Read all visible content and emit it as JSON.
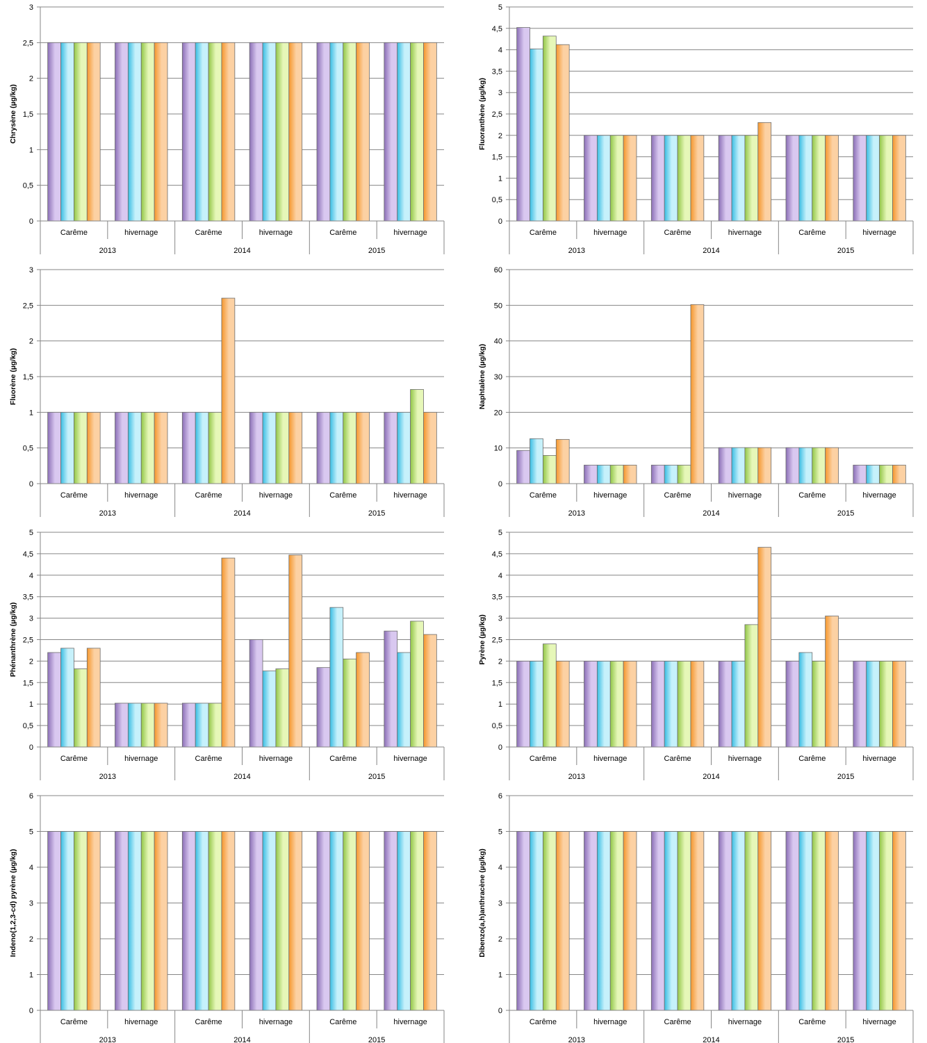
{
  "colors": {
    "s1": [
      "#d9c8f0",
      "#8b6fb6"
    ],
    "s2": [
      "#c6f1fb",
      "#39bde3"
    ],
    "s3": [
      "#e6f7b8",
      "#92c648"
    ],
    "s4": [
      "#fcd1a3",
      "#f5972d"
    ],
    "grid": "#868686"
  },
  "chart_data": [
    {
      "type": "bar",
      "ylabel": "Chrysène (µg/kg)",
      "ylim": [
        0,
        3
      ],
      "ystep": 0.5,
      "categories": [
        "Carême",
        "hivernage",
        "Carême",
        "hivernage",
        "Carême",
        "hivernage"
      ],
      "groups": [
        "2013",
        "2014",
        "2015"
      ],
      "yticks": [
        "0",
        "0,5",
        "1",
        "1,5",
        "2",
        "2,5",
        "3"
      ],
      "series": [
        {
          "values": [
            2.5,
            2.5,
            2.5,
            2.5,
            2.5,
            2.5
          ]
        },
        {
          "values": [
            2.5,
            2.5,
            2.5,
            2.5,
            2.5,
            2.5
          ]
        },
        {
          "values": [
            2.5,
            2.5,
            2.5,
            2.5,
            2.5,
            2.5
          ]
        },
        {
          "values": [
            2.5,
            2.5,
            2.5,
            2.5,
            2.5,
            2.5
          ]
        }
      ],
      "grid": true,
      "legend": "none"
    },
    {
      "type": "bar",
      "ylabel": "Fluoranthène (µg/kg)",
      "ylim": [
        0,
        5
      ],
      "ystep": 0.5,
      "categories": [
        "Carême",
        "hivernage",
        "Carême",
        "hivernage",
        "Carême",
        "hivernage"
      ],
      "groups": [
        "2013",
        "2014",
        "2015"
      ],
      "yticks": [
        "0",
        "0,5",
        "1",
        "1,5",
        "2",
        "2,5",
        "3",
        "3,5",
        "4",
        "4,5",
        "5"
      ],
      "series": [
        {
          "values": [
            4.52,
            2.0,
            2.0,
            2.0,
            2.0,
            2.0
          ]
        },
        {
          "values": [
            4.02,
            2.0,
            2.0,
            2.0,
            2.0,
            2.0
          ]
        },
        {
          "values": [
            4.32,
            2.0,
            2.0,
            2.0,
            2.0,
            2.0
          ]
        },
        {
          "values": [
            4.12,
            2.0,
            2.0,
            2.3,
            2.0,
            2.0
          ]
        }
      ],
      "grid": true,
      "legend": "none"
    },
    {
      "type": "bar",
      "ylabel": "Fluorène (µg/kg)",
      "ylim": [
        0,
        3
      ],
      "ystep": 0.5,
      "categories": [
        "Carême",
        "hivernage",
        "Carême",
        "hivernage",
        "Carême",
        "hivernage"
      ],
      "groups": [
        "2013",
        "2014",
        "2015"
      ],
      "yticks": [
        "0",
        "0,5",
        "1",
        "1,5",
        "2",
        "2,5",
        "3"
      ],
      "series": [
        {
          "values": [
            1.0,
            1.0,
            1.0,
            1.0,
            1.0,
            1.0
          ]
        },
        {
          "values": [
            1.0,
            1.0,
            1.0,
            1.0,
            1.0,
            1.0
          ]
        },
        {
          "values": [
            1.0,
            1.0,
            1.0,
            1.0,
            1.0,
            1.32
          ]
        },
        {
          "values": [
            1.0,
            1.0,
            2.6,
            1.0,
            1.0,
            1.0
          ]
        }
      ],
      "grid": true,
      "legend": "none"
    },
    {
      "type": "bar",
      "ylabel": "Naphtalène (µg/kg)",
      "ylim": [
        0,
        60
      ],
      "ystep": 10,
      "categories": [
        "Carême",
        "hivernage",
        "Carême",
        "hivernage",
        "Carême",
        "hivernage"
      ],
      "groups": [
        "2013",
        "2014",
        "2015"
      ],
      "yticks": [
        "0",
        "10",
        "20",
        "30",
        "40",
        "50",
        "60"
      ],
      "series": [
        {
          "values": [
            9.3,
            5.2,
            5.2,
            10.1,
            10.1,
            5.2
          ]
        },
        {
          "values": [
            12.6,
            5.2,
            5.2,
            10.1,
            10.1,
            5.2
          ]
        },
        {
          "values": [
            7.9,
            5.2,
            5.2,
            10.1,
            10.1,
            5.2
          ]
        },
        {
          "values": [
            12.4,
            5.2,
            50.2,
            10.1,
            10.1,
            5.2
          ]
        }
      ],
      "grid": true,
      "legend": "none"
    },
    {
      "type": "bar",
      "ylabel": "Phénanthrène (µg/kg)",
      "ylim": [
        0,
        5
      ],
      "ystep": 0.5,
      "categories": [
        "Carême",
        "hivernage",
        "Carême",
        "hivernage",
        "Carême",
        "hivernage"
      ],
      "groups": [
        "2013",
        "2014",
        "2015"
      ],
      "yticks": [
        "0",
        "0,5",
        "1",
        "1,5",
        "2",
        "2,5",
        "3",
        "3,5",
        "4",
        "4,5",
        "5"
      ],
      "series": [
        {
          "values": [
            2.2,
            1.02,
            1.02,
            2.5,
            1.85,
            2.7
          ]
        },
        {
          "values": [
            2.3,
            1.02,
            1.02,
            1.77,
            3.25,
            2.2
          ]
        },
        {
          "values": [
            1.82,
            1.02,
            1.02,
            1.82,
            2.05,
            2.93
          ]
        },
        {
          "values": [
            2.3,
            1.02,
            4.4,
            4.47,
            2.2,
            2.62
          ]
        }
      ],
      "grid": true,
      "legend": "none"
    },
    {
      "type": "bar",
      "ylabel": "Pyrène (µg/kg)",
      "ylim": [
        0,
        5
      ],
      "ystep": 0.5,
      "categories": [
        "Carême",
        "hivernage",
        "Carême",
        "hivernage",
        "Carême",
        "hivernage"
      ],
      "groups": [
        "2013",
        "2014",
        "2015"
      ],
      "yticks": [
        "0",
        "0,5",
        "1",
        "1,5",
        "2",
        "2,5",
        "3",
        "3,5",
        "4",
        "4,5",
        "5"
      ],
      "series": [
        {
          "values": [
            2.0,
            2.0,
            2.0,
            2.0,
            2.0,
            2.0
          ]
        },
        {
          "values": [
            2.0,
            2.0,
            2.0,
            2.0,
            2.2,
            2.0
          ]
        },
        {
          "values": [
            2.4,
            2.0,
            2.0,
            2.85,
            2.0,
            2.0
          ]
        },
        {
          "values": [
            2.0,
            2.0,
            2.0,
            4.65,
            3.05,
            2.0
          ]
        }
      ],
      "grid": true,
      "legend": "none"
    },
    {
      "type": "bar",
      "ylabel": "Indeno(1,2,3-cd) pyrène (µg/kg)",
      "ylim": [
        0,
        6
      ],
      "ystep": 1,
      "categories": [
        "Carême",
        "hivernage",
        "Carême",
        "hivernage",
        "Carême",
        "hivernage"
      ],
      "groups": [
        "2013",
        "2014",
        "2015"
      ],
      "yticks": [
        "0",
        "1",
        "2",
        "3",
        "4",
        "5",
        "6"
      ],
      "series": [
        {
          "values": [
            5.0,
            5.0,
            5.0,
            5.0,
            5.0,
            5.0
          ]
        },
        {
          "values": [
            5.0,
            5.0,
            5.0,
            5.0,
            5.0,
            5.0
          ]
        },
        {
          "values": [
            5.0,
            5.0,
            5.0,
            5.0,
            5.0,
            5.0
          ]
        },
        {
          "values": [
            5.0,
            5.0,
            5.0,
            5.0,
            5.0,
            5.0
          ]
        }
      ],
      "grid": true,
      "legend": "none"
    },
    {
      "type": "bar",
      "ylabel": "Dibenzo(a,h)anthracène (µg/kg)",
      "ylim": [
        0,
        6
      ],
      "ystep": 1,
      "categories": [
        "Carême",
        "hivernage",
        "Carême",
        "hivernage",
        "Carême",
        "hivernage"
      ],
      "groups": [
        "2013",
        "2014",
        "2015"
      ],
      "yticks": [
        "0",
        "1",
        "2",
        "3",
        "4",
        "5",
        "6"
      ],
      "series": [
        {
          "values": [
            5.0,
            5.0,
            5.0,
            5.0,
            5.0,
            5.0
          ]
        },
        {
          "values": [
            5.0,
            5.0,
            5.0,
            5.0,
            5.0,
            5.0
          ]
        },
        {
          "values": [
            5.0,
            5.0,
            5.0,
            5.0,
            5.0,
            5.0
          ]
        },
        {
          "values": [
            5.0,
            5.0,
            5.0,
            5.0,
            5.0,
            5.0
          ]
        }
      ],
      "grid": true,
      "legend": "none"
    }
  ]
}
